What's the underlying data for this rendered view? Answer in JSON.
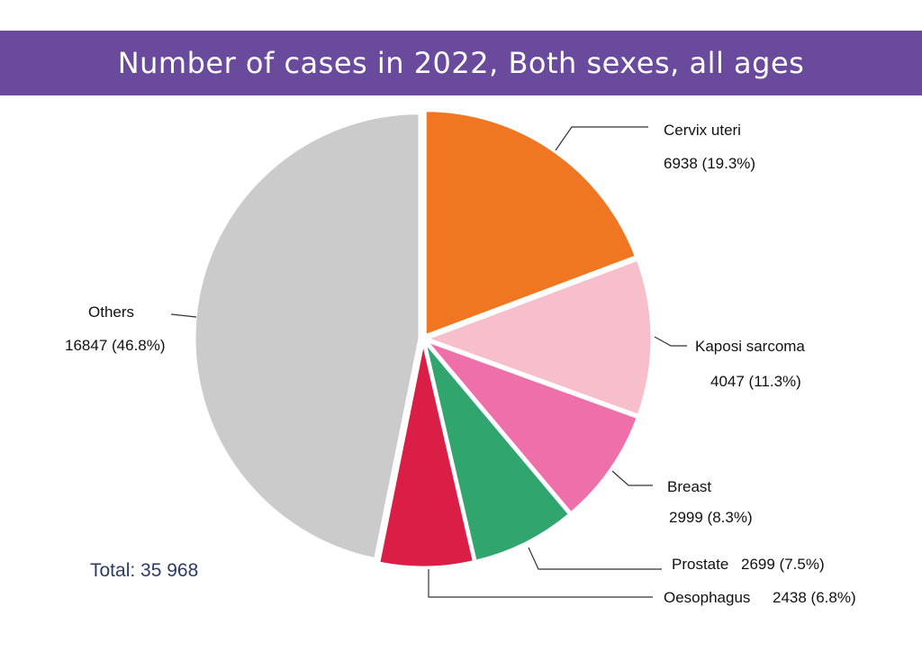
{
  "chart_data": {
    "type": "pie",
    "title": "Number of cases in 2022, Both sexes, all ages",
    "total_label": "Total: 35 968",
    "slices": [
      {
        "name": "Cervix uteri",
        "value": 6938,
        "value_label": "6938 (19.3%)",
        "color": "#f07622"
      },
      {
        "name": "Kaposi sarcoma",
        "value": 4047,
        "value_label": "4047 (11.3%)",
        "color": "#f7bfcb"
      },
      {
        "name": "Breast",
        "value": 2999,
        "value_label": "2999 (8.3%)",
        "color": "#ee6fa9"
      },
      {
        "name": "Prostate",
        "value": 2699,
        "value_label": "2699 (7.5%)",
        "color": "#31a56e"
      },
      {
        "name": "Oesophagus",
        "value": 2438,
        "value_label": "2438 (6.8%)",
        "color": "#db1e45"
      },
      {
        "name": "Others",
        "value": 16847,
        "value_label": "16847 (46.8%)",
        "color": "#cbcbcb"
      }
    ]
  }
}
